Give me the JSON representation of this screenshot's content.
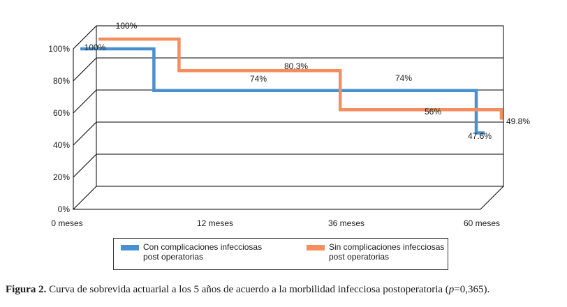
{
  "chart_data": {
    "type": "line",
    "step": true,
    "view": "3d-perspective",
    "categories": [
      "0 meses",
      "12 meses",
      "36 meses",
      "60 meses"
    ],
    "y_ticks": [
      "0%",
      "20%",
      "40%",
      "60%",
      "80%",
      "100%"
    ],
    "ylim": [
      0,
      100
    ],
    "grid": true,
    "legend_position": "bottom",
    "series": [
      {
        "name_line1": "Con complicaciones infecciosas",
        "name_line2": "post operatorias",
        "color": "#4a90d0",
        "values": [
          100,
          74,
          74,
          47.6
        ],
        "labels": [
          "100%",
          "74%",
          "74%",
          "47.6%"
        ]
      },
      {
        "name_line1": "Sin complicaciones infecciosas",
        "name_line2": "post operatorias",
        "color": "#f58d5c",
        "values": [
          100,
          80.3,
          56,
          49.8
        ],
        "labels": [
          "100%",
          "80.3%",
          "56%",
          "49.8%"
        ]
      }
    ]
  },
  "caption": {
    "label": "Figura 2.",
    "text_before": " Curva de sobrevida actuarial a los 5 años de acuerdo a la morbilidad infecciosa postoperatoria (",
    "p_symbol": "p",
    "text_after": "=0,365)."
  }
}
